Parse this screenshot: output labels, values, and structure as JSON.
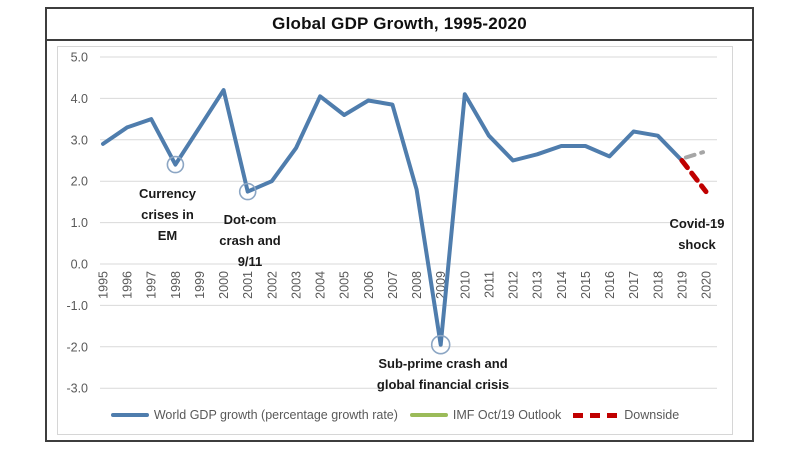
{
  "colors": {
    "gdp_line": "#4F7DAD",
    "outlook_plot": "#A6A6A6",
    "outlook_legend": "#9BBB59",
    "downside": "#C00000",
    "gridline": "#D9D9D9",
    "tick_text": "#595959",
    "circle_marker": "#8CA6C4",
    "frame_border": "#3d3d3d"
  },
  "chart_data": {
    "type": "line",
    "title": "Global GDP Growth, 1995-2020",
    "x_years": [
      1995,
      1996,
      1997,
      1998,
      1999,
      2000,
      2001,
      2002,
      2003,
      2004,
      2005,
      2006,
      2007,
      2008,
      2009,
      2010,
      2011,
      2012,
      2013,
      2014,
      2015,
      2016,
      2017,
      2018,
      2019,
      2020
    ],
    "ylim": [
      -3,
      5
    ],
    "ytick_step": 1,
    "grid": true,
    "legend_position": "bottom",
    "series": [
      {
        "name": "World GDP growth (percentage growth rate)",
        "style": "solid",
        "color_key": "gdp_line",
        "width": 4,
        "x": [
          1995,
          1996,
          1997,
          1998,
          1999,
          2000,
          2001,
          2002,
          2003,
          2004,
          2005,
          2006,
          2007,
          2008,
          2009,
          2010,
          2011,
          2012,
          2013,
          2014,
          2015,
          2016,
          2017,
          2018,
          2019
        ],
        "values": [
          2.9,
          3.3,
          3.5,
          2.4,
          3.3,
          4.2,
          1.75,
          2.0,
          2.8,
          4.05,
          3.6,
          3.95,
          3.85,
          1.8,
          -1.95,
          4.1,
          3.1,
          2.5,
          2.65,
          2.85,
          2.85,
          2.6,
          3.2,
          3.1,
          2.5
        ]
      },
      {
        "name": "IMF Oct/19 Outlook",
        "style": "dashed",
        "color_key": "outlook_plot",
        "width": 4,
        "x": [
          2019,
          2020
        ],
        "values": [
          2.5,
          2.7
        ]
      },
      {
        "name": "Downside",
        "style": "dashed",
        "color_key": "downside",
        "width": 5,
        "x": [
          2019,
          2020
        ],
        "values": [
          2.5,
          1.75
        ]
      }
    ],
    "circled_points": [
      {
        "year": 1998,
        "value": 2.4,
        "r": 8
      },
      {
        "year": 2001,
        "value": 1.75,
        "r": 8
      },
      {
        "year": 2009,
        "value": -1.95,
        "r": 9
      }
    ],
    "annotations": [
      {
        "id": "currency",
        "text": "Currency\ncrises in\nEM"
      },
      {
        "id": "dotcom",
        "text": "Dot-com\ncrash and\n9/11"
      },
      {
        "id": "subprime",
        "text": "Sub-prime  crash and\nglobal financial crisis"
      },
      {
        "id": "covid",
        "text": "Covid-19\nshock"
      }
    ]
  }
}
